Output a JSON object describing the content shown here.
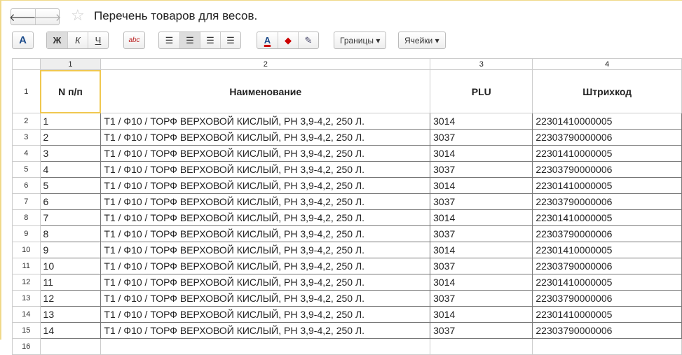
{
  "window": {
    "title": "Перечень товаров для весов.",
    "back_icon": "arrow-left",
    "forward_icon": "arrow-right",
    "favorite_icon": "star"
  },
  "toolbar": {
    "font": "A",
    "bold": "Ж",
    "italic": "К",
    "underline": "Ч",
    "spell": "abc",
    "text_color": "A",
    "borders": "Границы ▾",
    "cells": "Ячейки ▾"
  },
  "columns": [
    "1",
    "2",
    "3",
    "4"
  ],
  "headers": [
    "N п/п",
    "Наименование",
    "PLU",
    "Штрихкод"
  ],
  "rows": [
    {
      "n": "2",
      "c": [
        "1",
        "Т1 / Ф10 / ТОРФ ВЕРХОВОЙ КИСЛЫЙ, РН 3,9-4,2, 250 Л.",
        "3014",
        "22301410000005"
      ]
    },
    {
      "n": "3",
      "c": [
        "2",
        "Т1 / Ф10 / ТОРФ ВЕРХОВОЙ КИСЛЫЙ, РН 3,9-4,2, 250 Л.",
        "3037",
        "22303790000006"
      ]
    },
    {
      "n": "4",
      "c": [
        "3",
        "Т1 / Ф10 / ТОРФ ВЕРХОВОЙ КИСЛЫЙ, РН 3,9-4,2, 250 Л.",
        "3014",
        "22301410000005"
      ]
    },
    {
      "n": "5",
      "c": [
        "4",
        "Т1 / Ф10 / ТОРФ ВЕРХОВОЙ КИСЛЫЙ, РН 3,9-4,2, 250 Л.",
        "3037",
        "22303790000006"
      ]
    },
    {
      "n": "6",
      "c": [
        "5",
        "Т1 / Ф10 / ТОРФ ВЕРХОВОЙ КИСЛЫЙ, РН 3,9-4,2, 250 Л.",
        "3014",
        "22301410000005"
      ]
    },
    {
      "n": "7",
      "c": [
        "6",
        "Т1 / Ф10 / ТОРФ ВЕРХОВОЙ КИСЛЫЙ, РН 3,9-4,2, 250 Л.",
        "3037",
        "22303790000006"
      ]
    },
    {
      "n": "8",
      "c": [
        "7",
        "Т1 / Ф10 / ТОРФ ВЕРХОВОЙ КИСЛЫЙ, РН 3,9-4,2, 250 Л.",
        "3014",
        "22301410000005"
      ]
    },
    {
      "n": "9",
      "c": [
        "8",
        "Т1 / Ф10 / ТОРФ ВЕРХОВОЙ КИСЛЫЙ, РН 3,9-4,2, 250 Л.",
        "3037",
        "22303790000006"
      ]
    },
    {
      "n": "10",
      "c": [
        "9",
        "Т1 / Ф10 / ТОРФ ВЕРХОВОЙ КИСЛЫЙ, РН 3,9-4,2, 250 Л.",
        "3014",
        "22301410000005"
      ]
    },
    {
      "n": "11",
      "c": [
        "10",
        "Т1 / Ф10 / ТОРФ ВЕРХОВОЙ КИСЛЫЙ, РН 3,9-4,2, 250 Л.",
        "3037",
        "22303790000006"
      ]
    },
    {
      "n": "12",
      "c": [
        "11",
        "Т1 / Ф10 / ТОРФ ВЕРХОВОЙ КИСЛЫЙ, РН 3,9-4,2, 250 Л.",
        "3014",
        "22301410000005"
      ]
    },
    {
      "n": "13",
      "c": [
        "12",
        "Т1 / Ф10 / ТОРФ ВЕРХОВОЙ КИСЛЫЙ, РН 3,9-4,2, 250 Л.",
        "3037",
        "22303790000006"
      ]
    },
    {
      "n": "14",
      "c": [
        "13",
        "Т1 / Ф10 / ТОРФ ВЕРХОВОЙ КИСЛЫЙ, РН 3,9-4,2, 250 Л.",
        "3014",
        "22301410000005"
      ]
    },
    {
      "n": "15",
      "c": [
        "14",
        "Т1 / Ф10 / ТОРФ ВЕРХОВОЙ КИСЛЫЙ, РН 3,9-4,2, 250 Л.",
        "3037",
        "22303790000006"
      ]
    }
  ],
  "header_row_num": "1",
  "next_row_num": "16"
}
